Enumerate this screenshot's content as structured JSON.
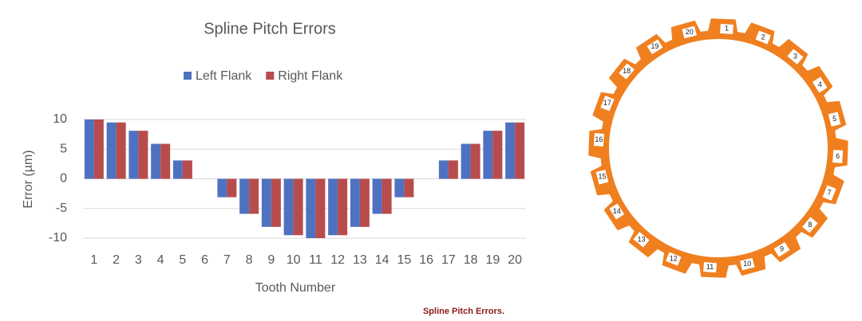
{
  "chart_data": {
    "type": "bar",
    "title": "Spline Pitch Errors",
    "x_label": "Tooth Number",
    "y_label": "Error (µm)",
    "categories": [
      "1",
      "2",
      "3",
      "4",
      "5",
      "6",
      "7",
      "8",
      "9",
      "10",
      "11",
      "12",
      "13",
      "14",
      "15",
      "16",
      "17",
      "18",
      "19",
      "20"
    ],
    "series": [
      {
        "name": "Left Flank",
        "color": "#4f72c0",
        "values": [
          10,
          9.5,
          8.1,
          5.9,
          3.1,
          0,
          -3.1,
          -5.9,
          -8.1,
          -9.5,
          -10,
          -9.5,
          -8.1,
          -5.9,
          -3.1,
          0,
          3.1,
          5.9,
          8.1,
          9.5
        ]
      },
      {
        "name": "Right Flank",
        "color": "#b84c4c",
        "values": [
          10,
          9.5,
          8.1,
          5.9,
          3.1,
          0,
          -3.1,
          -5.9,
          -8.1,
          -9.5,
          -10,
          -9.5,
          -8.1,
          -5.9,
          -3.1,
          0,
          3.1,
          5.9,
          8.1,
          9.5
        ]
      }
    ],
    "ylim": [
      -10,
      10
    ],
    "yticks": [
      -10,
      -5,
      0,
      5,
      10
    ],
    "grid": true,
    "legend": "top"
  },
  "diagram": {
    "tooth_labels": [
      "1",
      "2",
      "3",
      "4",
      "5",
      "6",
      "7",
      "8",
      "9",
      "10",
      "11",
      "12",
      "13",
      "14",
      "15",
      "16",
      "17",
      "18",
      "19",
      "20"
    ]
  },
  "caption": "Spline Pitch Errors."
}
